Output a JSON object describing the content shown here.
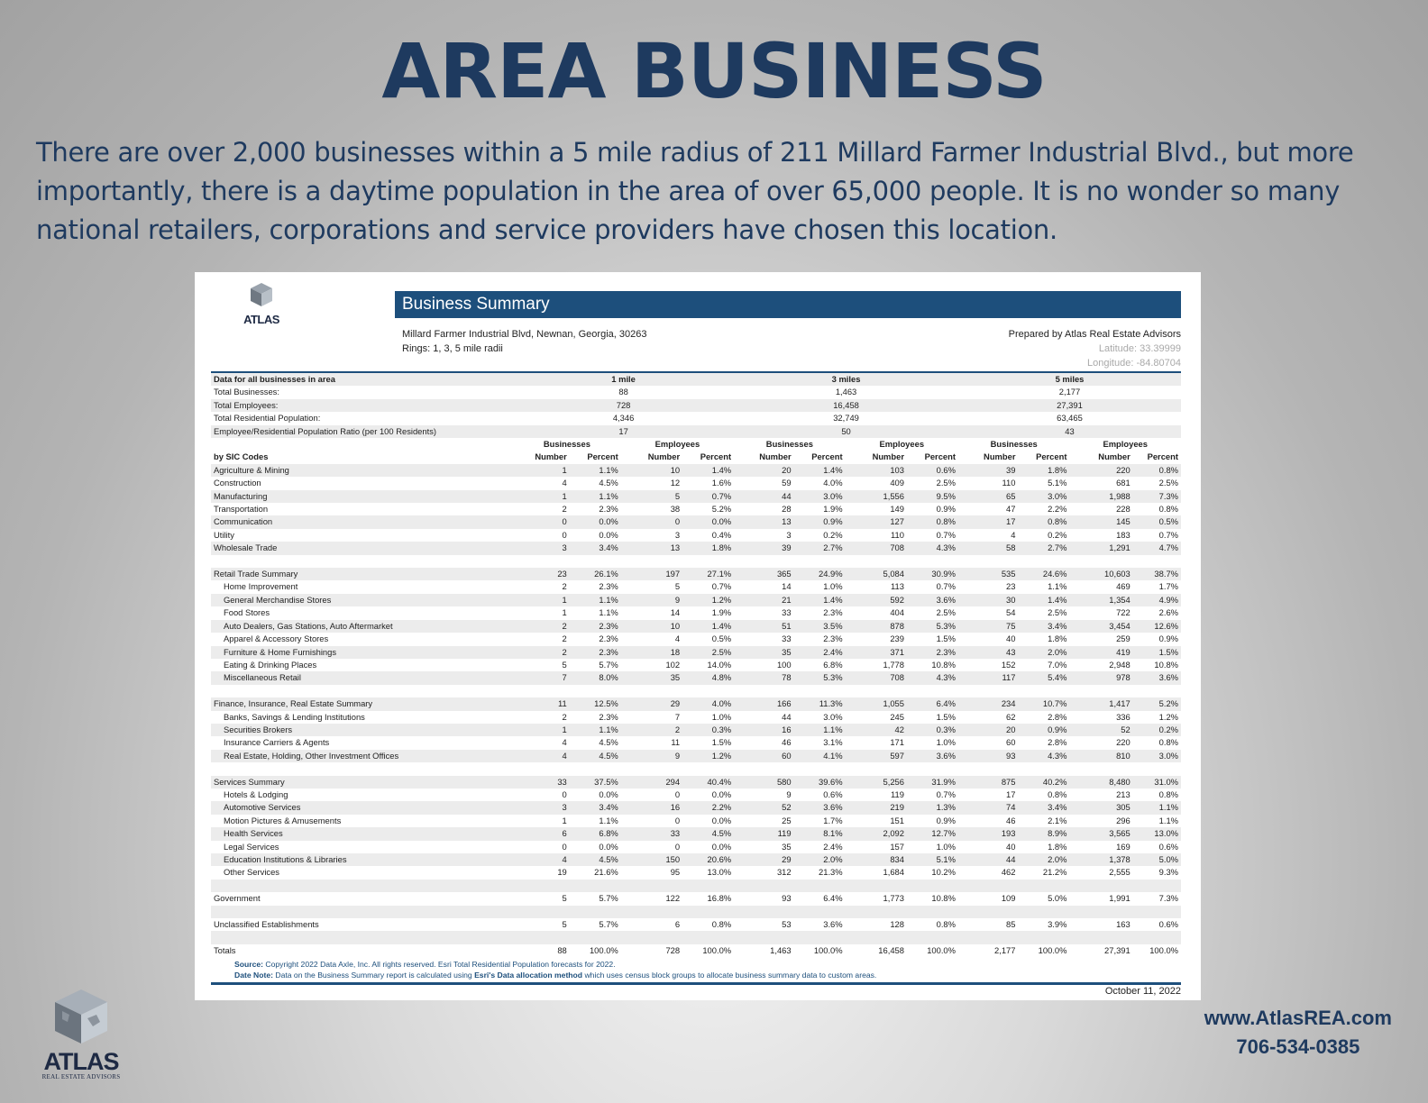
{
  "page": {
    "title": "AREA BUSINESS",
    "intro": "There are over 2,000 businesses within a 5 mile radius of 211 Millard Farmer Industrial Blvd., but more importantly, there is a daytime population in the area of over 65,000 people.  It is no wonder so many national retailers, corporations and service providers have chosen this location."
  },
  "report": {
    "logo_text": "ATLAS",
    "banner": "Business Summary",
    "address": "Millard Farmer Industrial Blvd, Newnan, Georgia, 30263",
    "rings": "Rings: 1, 3, 5 mile radii",
    "prepared_by": "Prepared by Atlas Real Estate Advisors",
    "latitude": "Latitude: 33.39999",
    "longitude": "Longitude: -84.80704",
    "summary_header": [
      "Data for all businesses in area",
      "1 mile",
      "3 miles",
      "5 miles"
    ],
    "summary_rows": [
      [
        "Total Businesses:",
        "88",
        "1,463",
        "2,177"
      ],
      [
        "Total Employees:",
        "728",
        "16,458",
        "27,391"
      ],
      [
        "Total Residential Population:",
        "4,346",
        "32,749",
        "63,465"
      ],
      [
        "Employee/Residential Population Ratio (per 100 Residents)",
        "17",
        "50",
        "43"
      ]
    ],
    "group_headers": [
      "Businesses",
      "Employees",
      "Businesses",
      "Employees",
      "Businesses",
      "Employees"
    ],
    "sic_label": "by SIC Codes",
    "number_label": "Number",
    "percent_label": "Percent",
    "sic_rows": [
      {
        "label": "Agriculture & Mining",
        "indent": false,
        "v": [
          "1",
          "1.1%",
          "10",
          "1.4%",
          "20",
          "1.4%",
          "103",
          "0.6%",
          "39",
          "1.8%",
          "220",
          "0.8%"
        ]
      },
      {
        "label": "Construction",
        "indent": false,
        "v": [
          "4",
          "4.5%",
          "12",
          "1.6%",
          "59",
          "4.0%",
          "409",
          "2.5%",
          "110",
          "5.1%",
          "681",
          "2.5%"
        ]
      },
      {
        "label": "Manufacturing",
        "indent": false,
        "v": [
          "1",
          "1.1%",
          "5",
          "0.7%",
          "44",
          "3.0%",
          "1,556",
          "9.5%",
          "65",
          "3.0%",
          "1,988",
          "7.3%"
        ]
      },
      {
        "label": "Transportation",
        "indent": false,
        "v": [
          "2",
          "2.3%",
          "38",
          "5.2%",
          "28",
          "1.9%",
          "149",
          "0.9%",
          "47",
          "2.2%",
          "228",
          "0.8%"
        ]
      },
      {
        "label": "Communication",
        "indent": false,
        "v": [
          "0",
          "0.0%",
          "0",
          "0.0%",
          "13",
          "0.9%",
          "127",
          "0.8%",
          "17",
          "0.8%",
          "145",
          "0.5%"
        ]
      },
      {
        "label": "Utility",
        "indent": false,
        "v": [
          "0",
          "0.0%",
          "3",
          "0.4%",
          "3",
          "0.2%",
          "110",
          "0.7%",
          "4",
          "0.2%",
          "183",
          "0.7%"
        ]
      },
      {
        "label": "Wholesale Trade",
        "indent": false,
        "v": [
          "3",
          "3.4%",
          "13",
          "1.8%",
          "39",
          "2.7%",
          "708",
          "4.3%",
          "58",
          "2.7%",
          "1,291",
          "4.7%"
        ]
      },
      {
        "gap": true
      },
      {
        "label": "Retail Trade Summary",
        "indent": false,
        "v": [
          "23",
          "26.1%",
          "197",
          "27.1%",
          "365",
          "24.9%",
          "5,084",
          "30.9%",
          "535",
          "24.6%",
          "10,603",
          "38.7%"
        ]
      },
      {
        "label": "Home Improvement",
        "indent": true,
        "v": [
          "2",
          "2.3%",
          "5",
          "0.7%",
          "14",
          "1.0%",
          "113",
          "0.7%",
          "23",
          "1.1%",
          "469",
          "1.7%"
        ]
      },
      {
        "label": "General Merchandise Stores",
        "indent": true,
        "v": [
          "1",
          "1.1%",
          "9",
          "1.2%",
          "21",
          "1.4%",
          "592",
          "3.6%",
          "30",
          "1.4%",
          "1,354",
          "4.9%"
        ]
      },
      {
        "label": "Food Stores",
        "indent": true,
        "v": [
          "1",
          "1.1%",
          "14",
          "1.9%",
          "33",
          "2.3%",
          "404",
          "2.5%",
          "54",
          "2.5%",
          "722",
          "2.6%"
        ]
      },
      {
        "label": "Auto Dealers, Gas Stations, Auto Aftermarket",
        "indent": true,
        "v": [
          "2",
          "2.3%",
          "10",
          "1.4%",
          "51",
          "3.5%",
          "878",
          "5.3%",
          "75",
          "3.4%",
          "3,454",
          "12.6%"
        ]
      },
      {
        "label": "Apparel & Accessory Stores",
        "indent": true,
        "v": [
          "2",
          "2.3%",
          "4",
          "0.5%",
          "33",
          "2.3%",
          "239",
          "1.5%",
          "40",
          "1.8%",
          "259",
          "0.9%"
        ]
      },
      {
        "label": "Furniture & Home Furnishings",
        "indent": true,
        "v": [
          "2",
          "2.3%",
          "18",
          "2.5%",
          "35",
          "2.4%",
          "371",
          "2.3%",
          "43",
          "2.0%",
          "419",
          "1.5%"
        ]
      },
      {
        "label": "Eating & Drinking Places",
        "indent": true,
        "v": [
          "5",
          "5.7%",
          "102",
          "14.0%",
          "100",
          "6.8%",
          "1,778",
          "10.8%",
          "152",
          "7.0%",
          "2,948",
          "10.8%"
        ]
      },
      {
        "label": "Miscellaneous Retail",
        "indent": true,
        "v": [
          "7",
          "8.0%",
          "35",
          "4.8%",
          "78",
          "5.3%",
          "708",
          "4.3%",
          "117",
          "5.4%",
          "978",
          "3.6%"
        ]
      },
      {
        "gap": true
      },
      {
        "label": "Finance, Insurance, Real Estate Summary",
        "indent": false,
        "v": [
          "11",
          "12.5%",
          "29",
          "4.0%",
          "166",
          "11.3%",
          "1,055",
          "6.4%",
          "234",
          "10.7%",
          "1,417",
          "5.2%"
        ]
      },
      {
        "label": "Banks, Savings & Lending Institutions",
        "indent": true,
        "v": [
          "2",
          "2.3%",
          "7",
          "1.0%",
          "44",
          "3.0%",
          "245",
          "1.5%",
          "62",
          "2.8%",
          "336",
          "1.2%"
        ]
      },
      {
        "label": "Securities Brokers",
        "indent": true,
        "v": [
          "1",
          "1.1%",
          "2",
          "0.3%",
          "16",
          "1.1%",
          "42",
          "0.3%",
          "20",
          "0.9%",
          "52",
          "0.2%"
        ]
      },
      {
        "label": "Insurance Carriers & Agents",
        "indent": true,
        "v": [
          "4",
          "4.5%",
          "11",
          "1.5%",
          "46",
          "3.1%",
          "171",
          "1.0%",
          "60",
          "2.8%",
          "220",
          "0.8%"
        ]
      },
      {
        "label": "Real Estate, Holding, Other Investment Offices",
        "indent": true,
        "v": [
          "4",
          "4.5%",
          "9",
          "1.2%",
          "60",
          "4.1%",
          "597",
          "3.6%",
          "93",
          "4.3%",
          "810",
          "3.0%"
        ]
      },
      {
        "gap": true
      },
      {
        "label": "Services Summary",
        "indent": false,
        "v": [
          "33",
          "37.5%",
          "294",
          "40.4%",
          "580",
          "39.6%",
          "5,256",
          "31.9%",
          "875",
          "40.2%",
          "8,480",
          "31.0%"
        ]
      },
      {
        "label": "Hotels & Lodging",
        "indent": true,
        "v": [
          "0",
          "0.0%",
          "0",
          "0.0%",
          "9",
          "0.6%",
          "119",
          "0.7%",
          "17",
          "0.8%",
          "213",
          "0.8%"
        ]
      },
      {
        "label": "Automotive Services",
        "indent": true,
        "v": [
          "3",
          "3.4%",
          "16",
          "2.2%",
          "52",
          "3.6%",
          "219",
          "1.3%",
          "74",
          "3.4%",
          "305",
          "1.1%"
        ]
      },
      {
        "label": "Motion Pictures & Amusements",
        "indent": true,
        "v": [
          "1",
          "1.1%",
          "0",
          "0.0%",
          "25",
          "1.7%",
          "151",
          "0.9%",
          "46",
          "2.1%",
          "296",
          "1.1%"
        ]
      },
      {
        "label": "Health Services",
        "indent": true,
        "v": [
          "6",
          "6.8%",
          "33",
          "4.5%",
          "119",
          "8.1%",
          "2,092",
          "12.7%",
          "193",
          "8.9%",
          "3,565",
          "13.0%"
        ]
      },
      {
        "label": "Legal Services",
        "indent": true,
        "v": [
          "0",
          "0.0%",
          "0",
          "0.0%",
          "35",
          "2.4%",
          "157",
          "1.0%",
          "40",
          "1.8%",
          "169",
          "0.6%"
        ]
      },
      {
        "label": "Education Institutions & Libraries",
        "indent": true,
        "v": [
          "4",
          "4.5%",
          "150",
          "20.6%",
          "29",
          "2.0%",
          "834",
          "5.1%",
          "44",
          "2.0%",
          "1,378",
          "5.0%"
        ]
      },
      {
        "label": "Other Services",
        "indent": true,
        "v": [
          "19",
          "21.6%",
          "95",
          "13.0%",
          "312",
          "21.3%",
          "1,684",
          "10.2%",
          "462",
          "21.2%",
          "2,555",
          "9.3%"
        ]
      },
      {
        "gap": true
      },
      {
        "label": "Government",
        "indent": false,
        "v": [
          "5",
          "5.7%",
          "122",
          "16.8%",
          "93",
          "6.4%",
          "1,773",
          "10.8%",
          "109",
          "5.0%",
          "1,991",
          "7.3%"
        ]
      },
      {
        "gap": true
      },
      {
        "label": "Unclassified Establishments",
        "indent": false,
        "v": [
          "5",
          "5.7%",
          "6",
          "0.8%",
          "53",
          "3.6%",
          "128",
          "0.8%",
          "85",
          "3.9%",
          "163",
          "0.6%"
        ]
      },
      {
        "gap": true
      },
      {
        "label": "Totals",
        "indent": false,
        "v": [
          "88",
          "100.0%",
          "728",
          "100.0%",
          "1,463",
          "100.0%",
          "16,458",
          "100.0%",
          "2,177",
          "100.0%",
          "27,391",
          "100.0%"
        ]
      }
    ],
    "source_label": "Source:",
    "source_text": "Copyright 2022 Data Axle, Inc. All rights reserved. Esri Total Residential Population forecasts for 2022.",
    "datenote_label": "Date Note:",
    "datenote_text_1": "Data on the Business Summary report is calculated using",
    "datenote_bold": "Esri's Data allocation method",
    "datenote_text_2": "which uses census block groups to allocate business summary data to custom areas.",
    "report_date": "October 11, 2022"
  },
  "footer": {
    "logo_text": "ATLAS",
    "logo_sub": "REAL ESTATE ADVISORS",
    "website": "www.AtlasREA.com",
    "phone": "706-534-0385"
  }
}
